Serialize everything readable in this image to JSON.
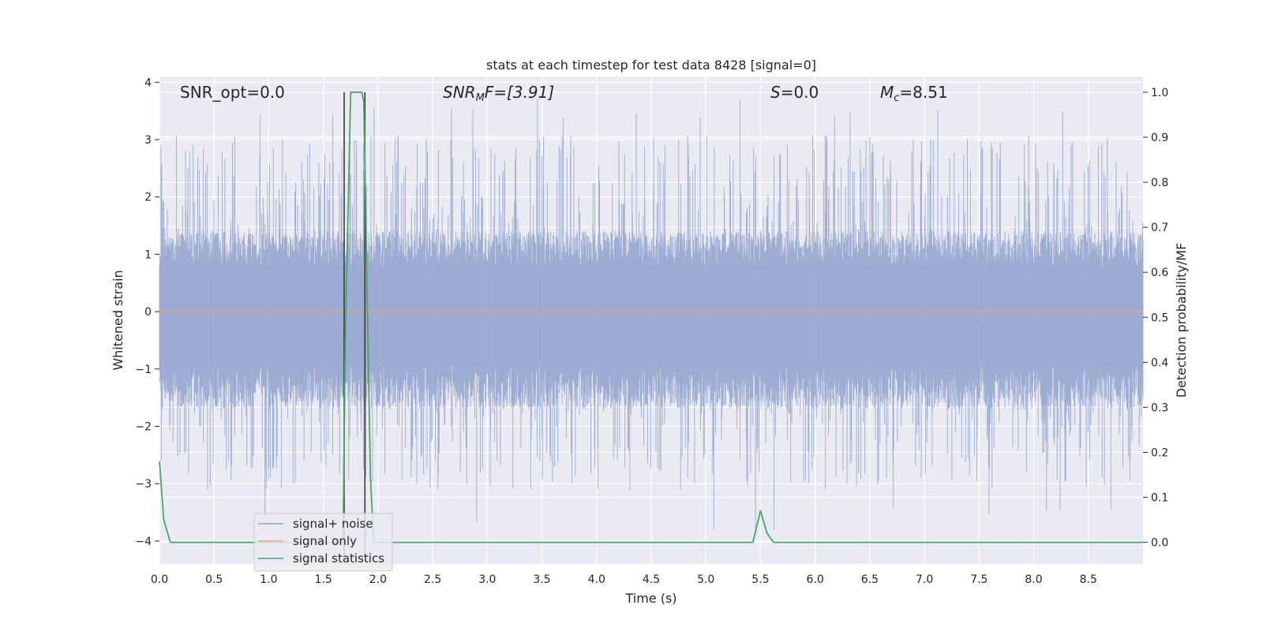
{
  "chart_data": {
    "type": "line",
    "title": "stats at each timestep for test data 8428 [signal=0]",
    "xlabel": "Time (s)",
    "ylabel": "Whitened strain",
    "y2label": "Detection probability/MF",
    "xlim": [
      0.0,
      9.0
    ],
    "ylim": [
      -4.4,
      4.1
    ],
    "y2lim": [
      -0.048,
      1.035
    ],
    "xticks": [
      "0.0",
      "0.5",
      "1.0",
      "1.5",
      "2.0",
      "2.5",
      "3.0",
      "3.5",
      "4.0",
      "4.5",
      "5.0",
      "5.5",
      "6.0",
      "6.5",
      "7.0",
      "7.5",
      "8.0",
      "8.5"
    ],
    "yticks": [
      "−4",
      "−3",
      "−2",
      "−1",
      "0",
      "1",
      "2",
      "3",
      "4"
    ],
    "y2ticks": [
      "0.0",
      "0.1",
      "0.2",
      "0.3",
      "0.4",
      "0.5",
      "0.6",
      "0.7",
      "0.8",
      "0.9",
      "1.0"
    ],
    "grid": true,
    "legend_position": "lower-left",
    "annotations": {
      "snr_opt": "SNR_opt=0.0",
      "snr_mf_prefix": "SNR",
      "snr_mf_sub": "M",
      "snr_mf_suffix": "F=[3.91]",
      "s_prefix": "S",
      "s_suffix": "=0.0",
      "mc_prefix": "M",
      "mc_sub": "c",
      "mc_suffix": "=8.51"
    },
    "series": [
      {
        "name": "signal+ noise",
        "color": "#8da0cb",
        "note_envelope": true,
        "envelope_typical": [
          -1.7,
          1.4
        ],
        "envelope_peak": [
          -4.0,
          3.75
        ]
      },
      {
        "name": "signal only",
        "color": "#e5a07a",
        "x": [
          0.0,
          9.0
        ],
        "y": [
          0.0,
          0.0
        ]
      },
      {
        "name": "signal statistics",
        "color": "#4aa564",
        "axis": "right",
        "x": [
          0.0,
          0.04,
          0.1,
          1.68,
          1.7,
          1.75,
          1.85,
          1.87,
          1.93,
          1.96,
          5.43,
          5.5,
          5.56,
          5.62,
          9.0
        ],
        "y": [
          0.18,
          0.05,
          0.0,
          0.0,
          0.45,
          1.0,
          1.0,
          0.98,
          0.15,
          0.0,
          0.0,
          0.07,
          0.02,
          0.0,
          0.0
        ]
      }
    ],
    "vertical_lines": [
      {
        "x": 1.69,
        "color": "#3a3a3a"
      },
      {
        "x": 1.88,
        "color": "#3a3a3a"
      }
    ]
  }
}
